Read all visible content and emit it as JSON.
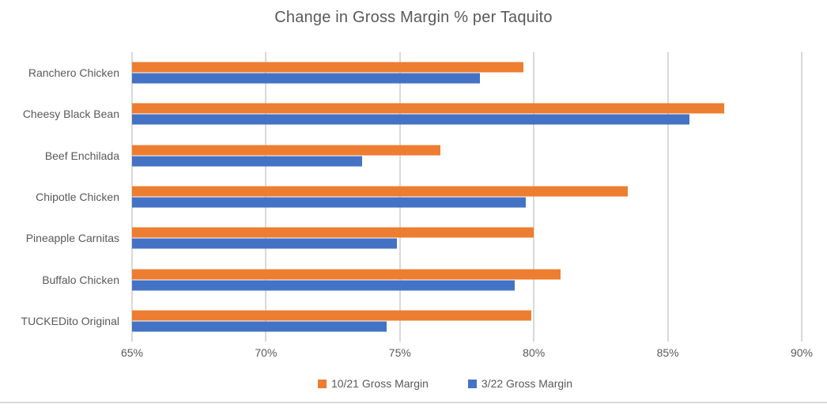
{
  "chart_data": {
    "type": "bar",
    "orientation": "horizontal",
    "title": "Change in Gross Margin % per Taquito",
    "categories": [
      "Ranchero Chicken",
      "Cheesy Black Bean",
      "Beef Enchilada",
      "Chipotle Chicken",
      "Pineapple Carnitas",
      "Buffalo Chicken",
      "TUCKEDito Original"
    ],
    "series": [
      {
        "name": "10/21 Gross Margin",
        "color": "#ED7D31",
        "values": [
          79.6,
          87.1,
          76.5,
          83.5,
          80.0,
          81.0,
          79.9
        ]
      },
      {
        "name": "3/22 Gross Margin",
        "color": "#4472C4",
        "values": [
          78.0,
          85.8,
          73.6,
          79.7,
          74.9,
          79.3,
          74.5
        ]
      }
    ],
    "xlim": [
      65,
      90
    ],
    "x_tick_values": [
      65,
      70,
      75,
      80,
      85,
      90
    ],
    "x_ticks": [
      "65%",
      "70%",
      "75%",
      "80%",
      "85%",
      "90%"
    ],
    "value_unit": "%",
    "grid": true,
    "legend_position": "bottom"
  },
  "colors": {
    "title_text": "#595959",
    "axis_text": "#595959",
    "gridline": "#D9D9D9",
    "bottom_divider": "#D9D9D9",
    "background": "#FFFFFF"
  }
}
